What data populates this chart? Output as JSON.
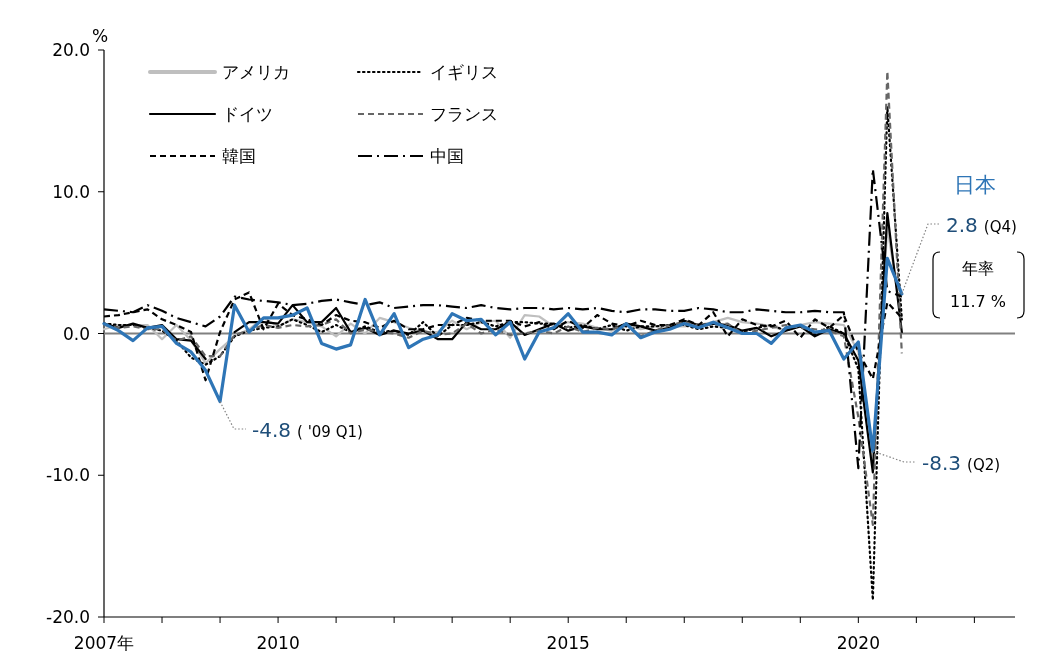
{
  "chart_data": {
    "type": "line",
    "ylabel": "%",
    "x": [
      2007,
      2007.25,
      2007.5,
      2007.75,
      2008,
      2008.25,
      2008.5,
      2008.75,
      2009,
      2009.25,
      2009.5,
      2009.75,
      2010,
      2010.25,
      2010.5,
      2010.75,
      2011,
      2011.25,
      2011.5,
      2011.75,
      2012,
      2012.25,
      2012.5,
      2012.75,
      2013,
      2013.25,
      2013.5,
      2013.75,
      2014,
      2014.25,
      2014.5,
      2014.75,
      2015,
      2015.25,
      2015.5,
      2015.75,
      2016,
      2016.25,
      2016.5,
      2016.75,
      2017,
      2017.25,
      2017.5,
      2017.75,
      2018,
      2018.25,
      2018.5,
      2018.75,
      2019,
      2019.25,
      2019.5,
      2019.75,
      2020,
      2020.25,
      2020.5,
      2020.75
    ],
    "series": [
      {
        "name": "アメリカ",
        "color": "#bfbfbf",
        "line_style": "solid",
        "values": [
          0.3,
          0.6,
          0.6,
          0.6,
          -0.4,
          0.6,
          -0.5,
          -2.1,
          -1.1,
          -0.2,
          0.3,
          1.1,
          0.5,
          1.0,
          0.8,
          0.5,
          -0.2,
          0.7,
          0.0,
          1.1,
          0.8,
          0.4,
          0.1,
          0.1,
          0.9,
          0.3,
          0.8,
          0.9,
          -0.3,
          1.3,
          1.2,
          0.5,
          0.8,
          0.7,
          0.4,
          0.2,
          0.6,
          0.3,
          0.5,
          0.5,
          0.5,
          0.6,
          0.8,
          1.1,
          0.8,
          0.7,
          0.5,
          0.2,
          0.6,
          0.8,
          0.7,
          0.6,
          -1.3,
          -9.0,
          7.5,
          1.0
        ]
      },
      {
        "name": "イギリス",
        "color": "#000000",
        "line_style": "dotted",
        "values": [
          0.7,
          0.6,
          0.6,
          0.4,
          0.2,
          -0.5,
          -1.7,
          -2.2,
          -1.6,
          -0.2,
          0.2,
          0.4,
          0.5,
          1.0,
          0.6,
          0.1,
          0.6,
          0.1,
          0.5,
          0.1,
          0.2,
          -0.1,
          0.8,
          -0.2,
          0.6,
          0.6,
          0.8,
          0.5,
          0.8,
          0.8,
          0.7,
          0.7,
          0.4,
          0.6,
          0.3,
          0.6,
          0.2,
          0.5,
          0.5,
          0.6,
          0.6,
          0.3,
          0.5,
          0.4,
          0.1,
          0.4,
          0.6,
          0.2,
          0.6,
          -0.1,
          0.5,
          0.0,
          -2.5,
          -18.8,
          16.0,
          1.0
        ]
      },
      {
        "name": "ドイツ",
        "color": "#000000",
        "line_style": "solid",
        "values": [
          0.7,
          0.4,
          0.7,
          0.4,
          0.6,
          -0.4,
          -0.5,
          -1.8,
          null,
          0.1,
          0.8,
          0.8,
          0.7,
          2.0,
          0.8,
          0.8,
          1.8,
          0.1,
          0.4,
          -0.1,
          0.2,
          0.0,
          0.2,
          -0.4,
          -0.4,
          0.8,
          0.3,
          0.3,
          0.8,
          -0.1,
          0.3,
          0.7,
          0.2,
          0.5,
          0.3,
          0.3,
          0.7,
          0.5,
          0.2,
          0.4,
          0.9,
          0.6,
          0.7,
          0.6,
          0.2,
          0.4,
          -0.2,
          0.2,
          0.5,
          -0.2,
          0.3,
          0.0,
          -1.9,
          -9.8,
          8.5,
          0.1
        ]
      },
      {
        "name": "フランス",
        "color": "#666666",
        "line_style": "dashed",
        "values": [
          0.6,
          0.4,
          0.5,
          0.3,
          0.3,
          -0.5,
          -0.2,
          -1.6,
          -1.6,
          -0.1,
          0.2,
          0.6,
          0.4,
          0.6,
          0.5,
          0.6,
          1.0,
          0.0,
          0.3,
          0.1,
          0.0,
          -0.3,
          0.2,
          -0.1,
          0.0,
          0.7,
          0.0,
          0.3,
          -0.1,
          0.0,
          0.2,
          0.0,
          0.5,
          0.1,
          0.4,
          0.3,
          0.6,
          -0.2,
          0.2,
          0.6,
          0.8,
          0.6,
          0.6,
          0.7,
          0.0,
          0.2,
          0.4,
          0.6,
          0.4,
          0.3,
          0.2,
          -0.2,
          -5.9,
          -13.5,
          18.5,
          -1.4
        ]
      },
      {
        "name": "韓国",
        "color": "#000000",
        "line_style": "dashed",
        "values": [
          1.2,
          1.3,
          1.5,
          1.7,
          1.0,
          0.6,
          0.1,
          -3.3,
          0.1,
          2.4,
          2.9,
          0.3,
          2.1,
          1.3,
          1.0,
          0.6,
          1.3,
          0.9,
          0.8,
          0.4,
          0.9,
          0.3,
          0.3,
          0.6,
          0.6,
          1.1,
          0.9,
          0.9,
          0.9,
          0.5,
          0.8,
          0.3,
          0.9,
          0.4,
          1.3,
          0.7,
          0.5,
          0.9,
          0.6,
          0.6,
          1.0,
          0.6,
          1.5,
          -0.2,
          1.0,
          0.6,
          0.5,
          0.9,
          -0.3,
          1.0,
          0.4,
          1.3,
          -1.3,
          -3.2,
          2.2,
          1.1
        ]
      },
      {
        "name": "中国",
        "color": "#000000",
        "line_style": "dashdot",
        "values": [
          1.7,
          1.6,
          1.5,
          2.0,
          1.6,
          1.1,
          0.8,
          0.5,
          1.2,
          2.6,
          2.4,
          2.3,
          2.2,
          2.0,
          2.1,
          2.3,
          2.4,
          2.2,
          2.0,
          2.2,
          1.8,
          1.9,
          2.0,
          2.0,
          1.9,
          1.8,
          2.0,
          1.8,
          1.7,
          1.8,
          1.8,
          1.7,
          1.8,
          1.7,
          1.8,
          1.6,
          1.5,
          1.7,
          1.7,
          1.6,
          1.6,
          1.8,
          1.7,
          1.5,
          1.5,
          1.7,
          1.6,
          1.5,
          1.5,
          1.6,
          1.5,
          1.5,
          -9.5,
          11.6,
          3.0,
          2.6
        ]
      },
      {
        "name": "日本",
        "color": "#2e75b6",
        "line_style": "solid",
        "values": [
          0.7,
          0.2,
          -0.5,
          0.4,
          0.5,
          -0.7,
          -1.3,
          -2.6,
          -4.8,
          2.0,
          0.1,
          1.1,
          1.1,
          1.3,
          1.8,
          -0.7,
          -1.1,
          -0.8,
          2.4,
          -0.1,
          1.4,
          -1.0,
          -0.4,
          -0.1,
          1.4,
          0.9,
          1.0,
          -0.1,
          0.8,
          -1.8,
          0.1,
          0.4,
          1.4,
          0.1,
          0.1,
          -0.1,
          0.7,
          -0.3,
          0.1,
          0.3,
          0.7,
          0.4,
          0.8,
          0.4,
          0.0,
          0.0,
          -0.7,
          0.4,
          0.6,
          0.1,
          0.2,
          -1.8,
          -0.6,
          -8.3,
          5.3,
          2.8
        ]
      }
    ],
    "xlim": [
      2007,
      2022.7
    ],
    "xticks": [
      {
        "value": 2007,
        "label": "2007年"
      },
      {
        "value": 2008,
        "label": null
      },
      {
        "value": 2009,
        "label": null
      },
      2010,
      {
        "value": 2011,
        "label": null
      },
      {
        "value": 2012,
        "label": null
      },
      {
        "value": 2013,
        "label": null
      },
      {
        "value": 2014,
        "label": null
      },
      2015,
      {
        "value": 2016,
        "label": null
      },
      {
        "value": 2017,
        "label": null
      },
      {
        "value": 2018,
        "label": null
      },
      {
        "value": 2019,
        "label": null
      },
      2020,
      {
        "value": 2021,
        "label": null
      },
      {
        "value": 2022,
        "label": null
      }
    ],
    "ylim": [
      -20,
      20
    ],
    "yticks": [
      {
        "value": -20,
        "label": "-20.0"
      },
      {
        "value": -10,
        "label": "-10.0"
      },
      {
        "value": 0,
        "label": "0.0"
      },
      {
        "value": 10,
        "label": "10.0"
      },
      {
        "value": 20,
        "label": "20.0"
      }
    ],
    "ref_lines": [
      {
        "axis": "y",
        "value": 0,
        "color": "#808080"
      }
    ],
    "legend": "top left",
    "grid": false,
    "marker": "none",
    "annotations": [
      {
        "text": "-4.8 ( '09 Q1)",
        "x": 2009,
        "y": -4.8
      },
      {
        "text": "-8.3 (Q2)",
        "x": 2020.25,
        "y": -8.3
      },
      {
        "text": "2.8 (Q4)",
        "x": 2020.75,
        "y": 2.8
      },
      "年率 11.7 %"
    ]
  }
}
